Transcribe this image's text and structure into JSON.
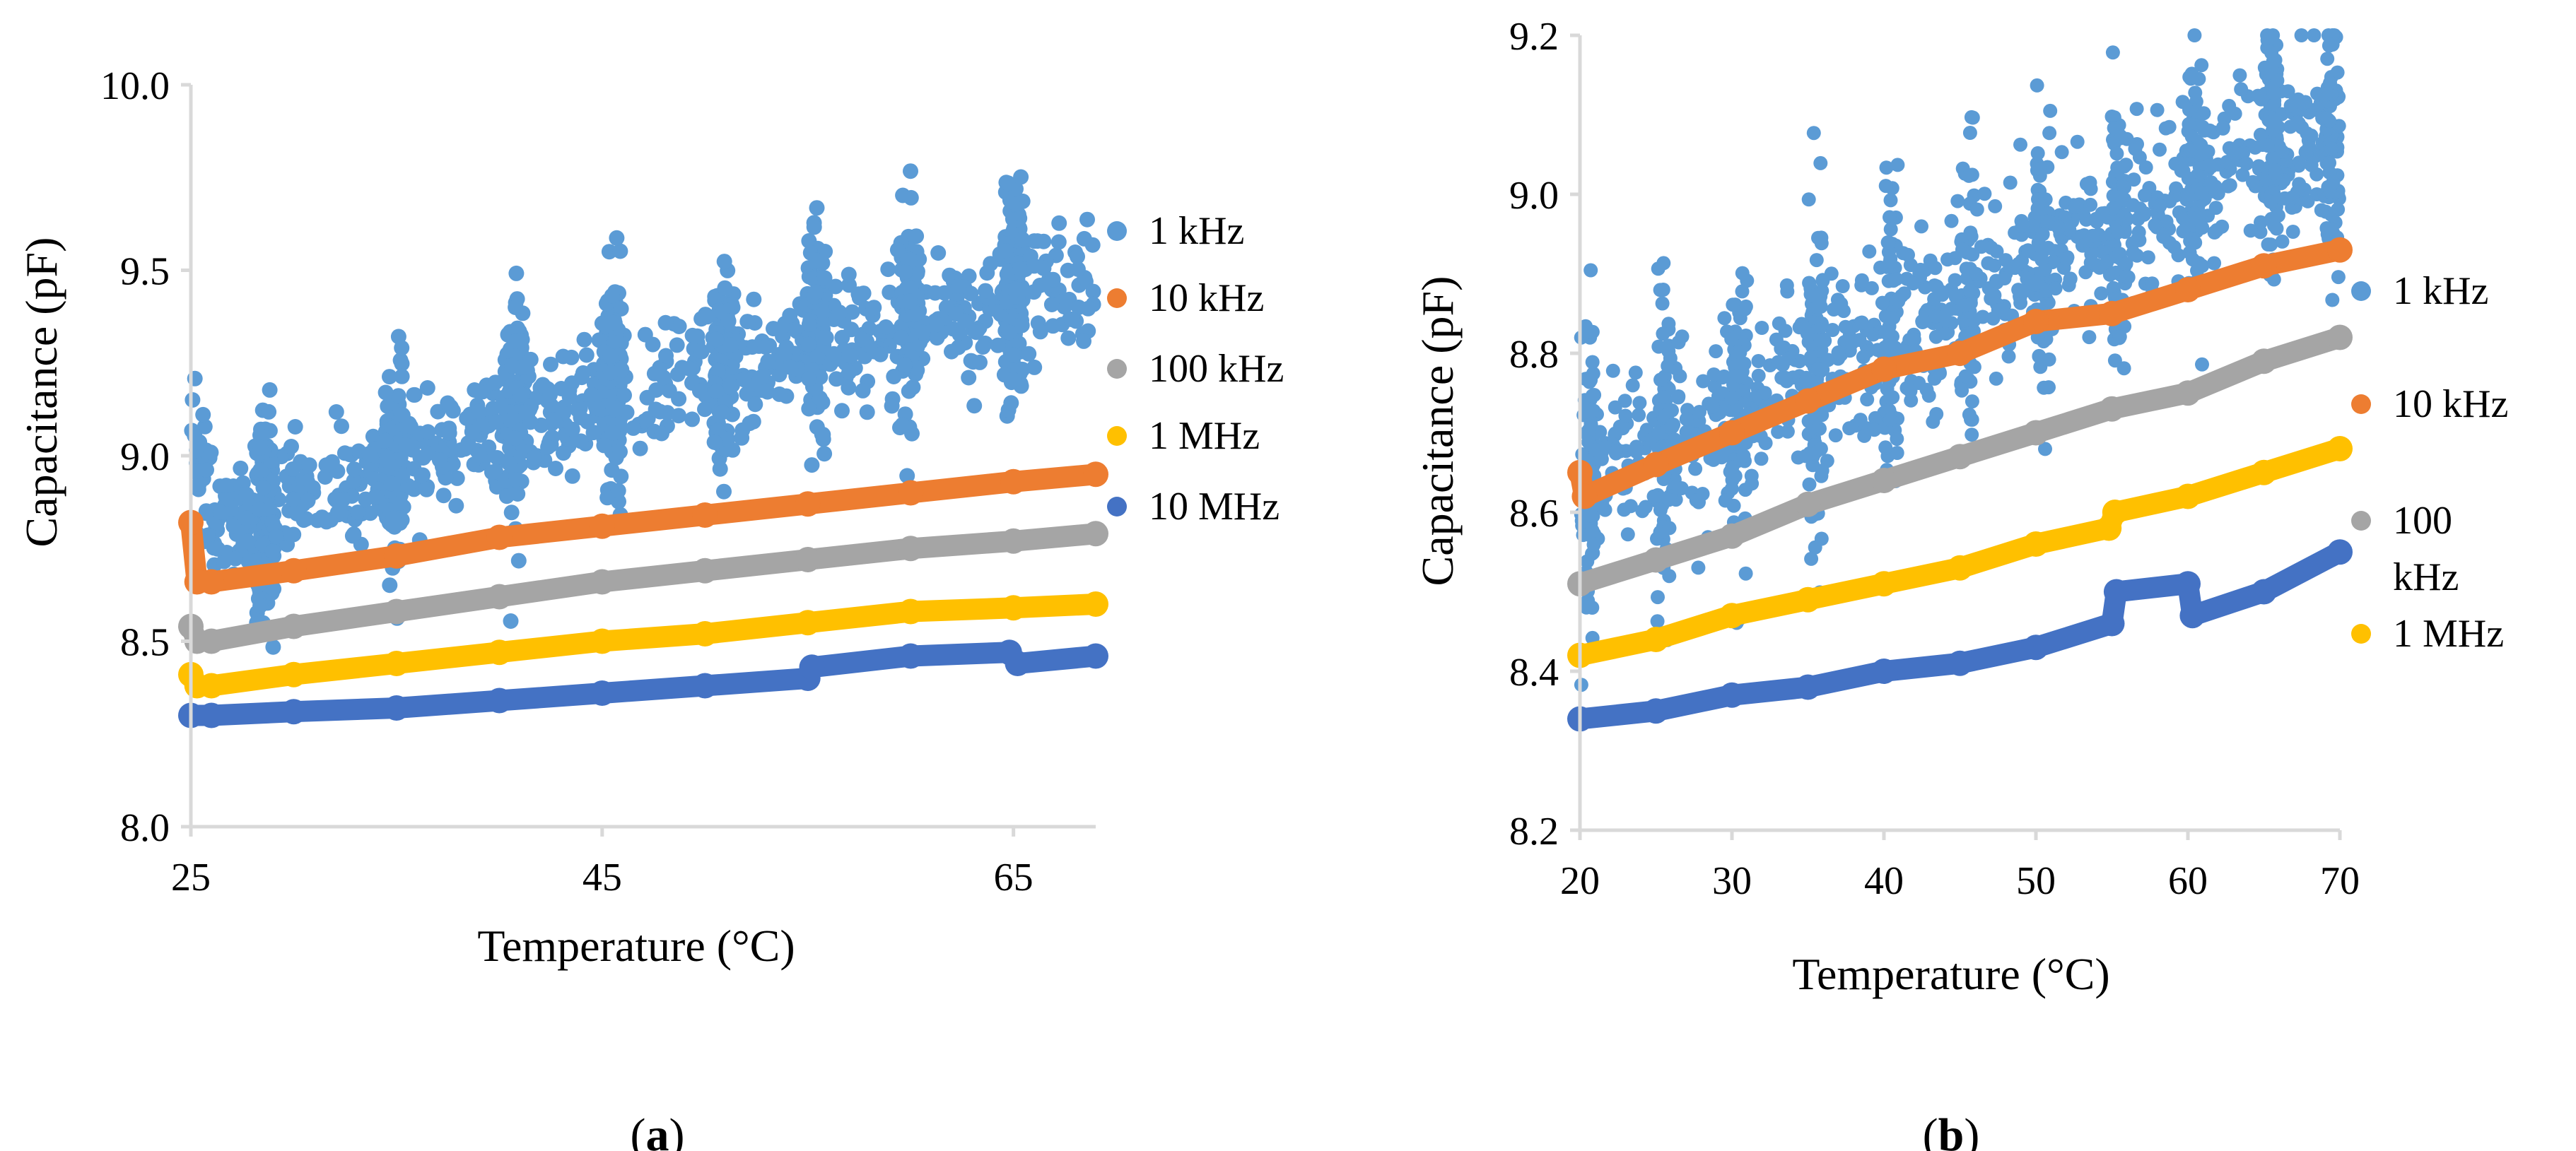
{
  "figure": {
    "labels": [
      "(a)",
      "(b)"
    ]
  },
  "colors": {
    "1 kHz": "#5B9BD5",
    "10 kHz": "#ED7D31",
    "100 kHz": "#A5A5A5",
    "1 MHz": "#FFC000",
    "10 MHz": "#4472C4",
    "axis": "#D9D9D9"
  },
  "chart_data": [
    {
      "type": "scatter",
      "panel": "(a)",
      "xlabel": "Temperature (°C)",
      "ylabel": "Capacitance (pF)",
      "xlim": [
        25,
        69
      ],
      "ylim": [
        8.0,
        10.0
      ],
      "xticks": [
        25,
        45,
        65
      ],
      "yticks": [
        8.0,
        8.5,
        9.0,
        9.5,
        10.0
      ],
      "ytick_labels": [
        "8.0",
        "8.5",
        "9.0",
        "9.5",
        "10.0"
      ],
      "legend": [
        "1 kHz",
        "10 kHz",
        "100 kHz",
        "1 MHz",
        "10 MHz"
      ],
      "legend_position": "right",
      "series": [
        {
          "name": "1 kHz",
          "x": [
            25,
            25.5,
            26,
            27,
            28,
            29,
            30,
            31,
            32,
            33,
            34,
            35,
            36,
            37,
            38,
            39,
            40,
            41,
            42,
            43,
            44,
            45,
            46,
            47,
            48,
            49,
            50,
            51,
            52,
            53,
            54,
            55,
            56,
            57,
            58,
            59,
            60,
            61,
            62,
            63,
            64,
            65,
            66,
            67,
            68,
            69
          ],
          "values": [
            9.1,
            8.95,
            8.85,
            8.85,
            8.83,
            8.85,
            8.88,
            8.9,
            8.9,
            8.92,
            8.95,
            8.98,
            9.02,
            9.0,
            9.0,
            9.05,
            9.08,
            9.1,
            9.12,
            9.1,
            9.15,
            9.18,
            9.2,
            9.15,
            9.2,
            9.22,
            9.25,
            9.25,
            9.22,
            9.25,
            9.28,
            9.3,
            9.35,
            9.3,
            9.32,
            9.35,
            9.38,
            9.4,
            9.38,
            9.35,
            9.4,
            9.45,
            9.45,
            9.42,
            9.45,
            9.45
          ],
          "spread": 0.14,
          "jumps": [
            28.6,
            34.9,
            40.7,
            45.5,
            50.9,
            55.4,
            59.9,
            65.0
          ]
        },
        {
          "name": "10 kHz",
          "x": [
            25,
            25.3,
            26,
            30,
            35,
            40,
            45,
            50,
            55,
            60,
            65,
            69
          ],
          "values": [
            8.82,
            8.66,
            8.66,
            8.69,
            8.73,
            8.78,
            8.81,
            8.84,
            8.87,
            8.9,
            8.93,
            8.95
          ]
        },
        {
          "name": "100 kHz",
          "x": [
            25,
            25.3,
            26,
            30,
            35,
            40,
            45,
            50,
            55,
            60,
            65,
            69
          ],
          "values": [
            8.54,
            8.5,
            8.5,
            8.54,
            8.58,
            8.62,
            8.66,
            8.69,
            8.72,
            8.75,
            8.77,
            8.79
          ]
        },
        {
          "name": "1 MHz",
          "x": [
            25,
            25.3,
            26,
            30,
            35,
            40,
            45,
            50,
            55,
            60,
            65,
            69
          ],
          "values": [
            8.41,
            8.38,
            8.38,
            8.41,
            8.44,
            8.47,
            8.5,
            8.52,
            8.55,
            8.58,
            8.59,
            8.6
          ]
        },
        {
          "name": "10 MHz",
          "x": [
            25,
            26,
            30,
            35,
            40,
            45,
            50,
            55,
            55.2,
            60,
            64.8,
            65.2,
            69
          ],
          "values": [
            8.3,
            8.3,
            8.31,
            8.32,
            8.34,
            8.36,
            8.38,
            8.4,
            8.43,
            8.46,
            8.47,
            8.44,
            8.46
          ]
        }
      ]
    },
    {
      "type": "scatter",
      "panel": "(b)",
      "xlabel": "Temperature (°C)",
      "ylabel": "Capacitance (pF)",
      "xlim": [
        20,
        70
      ],
      "ylim": [
        8.2,
        9.2
      ],
      "xticks": [
        20,
        30,
        40,
        50,
        60,
        70
      ],
      "yticks": [
        8.2,
        8.4,
        8.6,
        8.8,
        9.0,
        9.2
      ],
      "ytick_labels": [
        "8.2",
        "8.4",
        "8.6",
        "8.8",
        "9.0",
        "9.2"
      ],
      "legend": [
        "1 kHz",
        "10 kHz",
        "100 kHz",
        "1 MHz"
      ],
      "legend_position": "right",
      "series": [
        {
          "name": "1 kHz",
          "x": [
            20,
            22,
            24,
            26,
            28,
            30,
            32,
            34,
            36,
            38,
            40,
            42,
            44,
            46,
            48,
            50,
            52,
            54,
            56,
            58,
            60,
            62,
            64,
            66,
            68,
            70
          ],
          "values": [
            8.66,
            8.67,
            8.68,
            8.69,
            8.7,
            8.72,
            8.74,
            8.76,
            8.78,
            8.79,
            8.82,
            8.83,
            8.85,
            8.87,
            8.88,
            8.92,
            8.93,
            8.95,
            8.97,
            8.98,
            9.02,
            9.02,
            9.04,
            9.06,
            9.07,
            9.08
          ],
          "spread": 0.09,
          "jumps": [
            20.5,
            25.5,
            30.5,
            35.5,
            40.5,
            45.5,
            50.5,
            55.5,
            60.5,
            65.5,
            69.5
          ]
        },
        {
          "name": "10 kHz",
          "x": [
            20,
            20.3,
            25,
            30,
            35,
            40,
            45,
            50,
            55,
            60,
            65,
            70
          ],
          "values": [
            8.65,
            8.62,
            8.66,
            8.7,
            8.74,
            8.78,
            8.8,
            8.84,
            8.85,
            8.88,
            8.91,
            8.93
          ]
        },
        {
          "name": "100 kHz",
          "x": [
            20,
            25,
            30,
            35,
            40,
            45,
            50,
            55,
            60,
            65,
            70
          ],
          "values": [
            8.51,
            8.54,
            8.57,
            8.61,
            8.64,
            8.67,
            8.7,
            8.73,
            8.75,
            8.79,
            8.82
          ]
        },
        {
          "name": "1 MHz",
          "x": [
            20,
            25,
            30,
            35,
            40,
            45,
            50,
            54.8,
            55.2,
            60,
            65,
            70
          ],
          "values": [
            8.42,
            8.44,
            8.47,
            8.49,
            8.51,
            8.53,
            8.56,
            8.58,
            8.6,
            8.62,
            8.65,
            8.68
          ]
        },
        {
          "name": "10 MHz",
          "x": [
            20,
            25,
            30,
            35,
            40,
            45,
            50,
            55,
            55.3,
            60,
            60.3,
            65,
            70
          ],
          "values": [
            8.34,
            8.35,
            8.37,
            8.38,
            8.4,
            8.41,
            8.43,
            8.46,
            8.5,
            8.51,
            8.47,
            8.5,
            8.55
          ]
        }
      ]
    }
  ]
}
